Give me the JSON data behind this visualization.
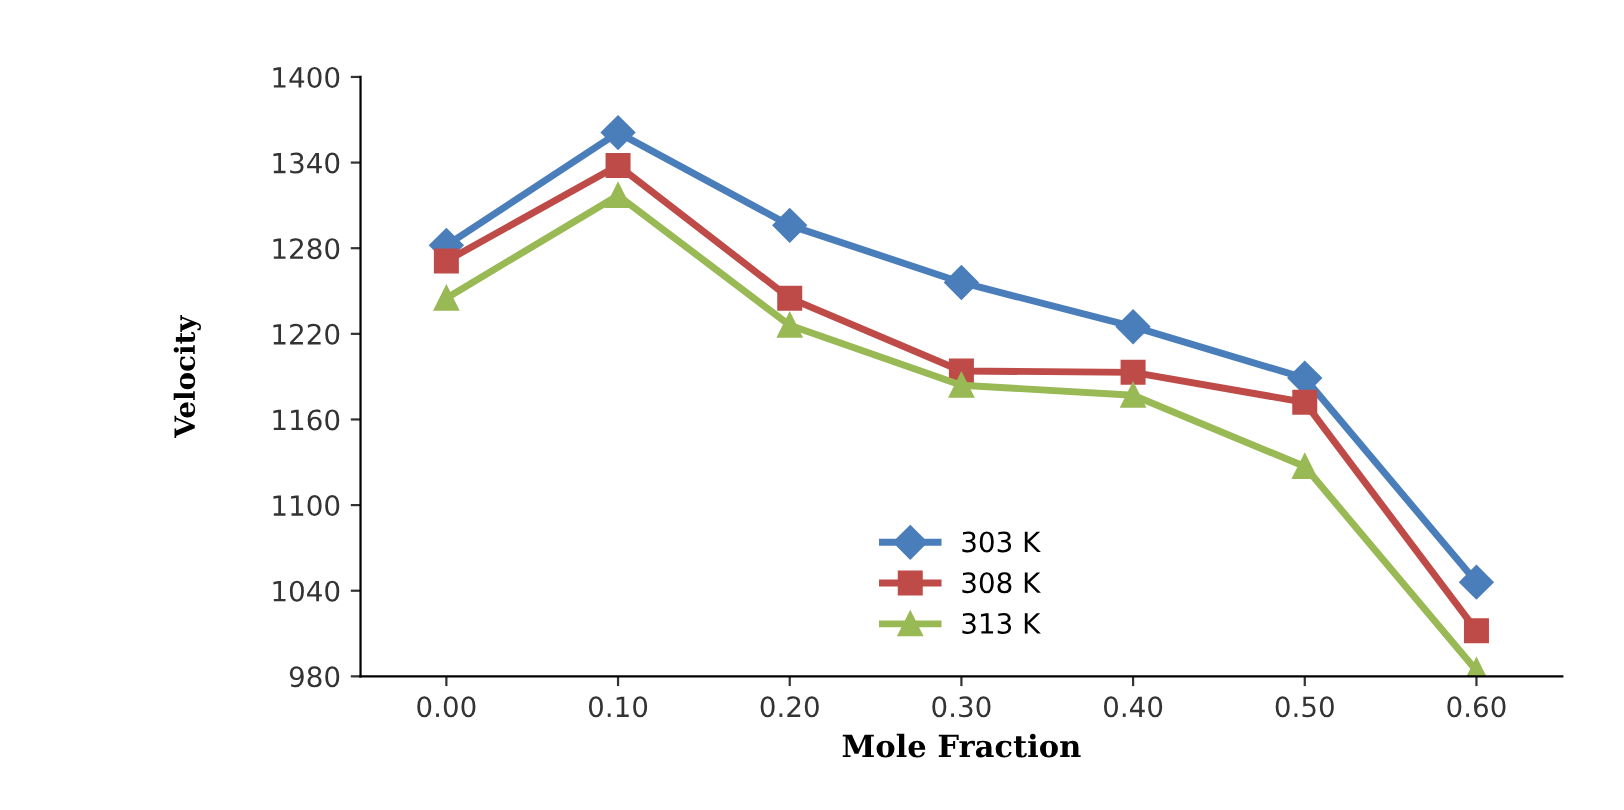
{
  "chart_data": {
    "type": "line",
    "xlabel": "Mole Fraction",
    "ylabel": "Velocity",
    "categories": [
      "0.00",
      "0.10",
      "0.20",
      "0.30",
      "0.40",
      "0.50",
      "0.60"
    ],
    "series": [
      {
        "name": "303 K",
        "color": "#4a7ebb",
        "marker": "diamond",
        "values": [
          1282,
          1361,
          1296,
          1256,
          1225,
          1189,
          1046
        ]
      },
      {
        "name": "308 K",
        "color": "#be4b48",
        "marker": "square",
        "values": [
          1271,
          1338,
          1245,
          1194,
          1193,
          1172,
          1012
        ]
      },
      {
        "name": "313 K",
        "color": "#98b954",
        "marker": "triangle",
        "values": [
          1245,
          1317,
          1226,
          1184,
          1177,
          1127,
          984
        ]
      }
    ],
    "ylim": [
      980,
      1400
    ],
    "yticks": [
      980,
      1040,
      1100,
      1160,
      1220,
      1280,
      1340,
      1400
    ],
    "grid": false,
    "legend": "bottom",
    "line_style": "solid"
  }
}
